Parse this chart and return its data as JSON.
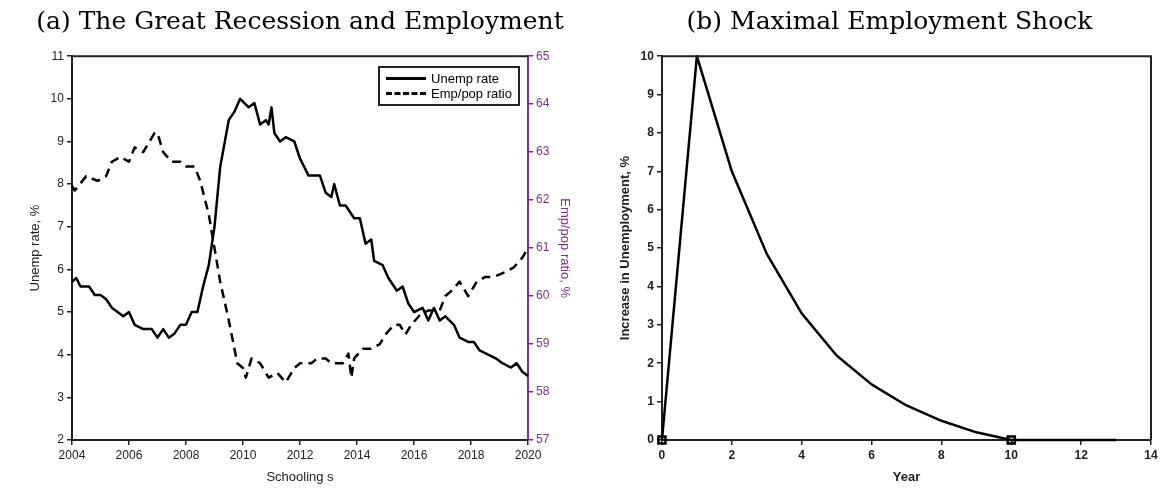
{
  "chart_data": [
    {
      "type": "line",
      "title": "(a) The Great Recession and Employment",
      "xlabel": "Schooling s",
      "ylabel": "Unemp rate, %",
      "y2label": "Emp/pop ratio, %",
      "xlim": [
        2004,
        2020
      ],
      "xticks": [
        2004,
        2006,
        2008,
        2010,
        2012,
        2014,
        2016,
        2018,
        2020
      ],
      "ylim": [
        2,
        11
      ],
      "yticks": [
        2,
        3,
        4,
        5,
        6,
        7,
        8,
        9,
        10,
        11
      ],
      "y2lim": [
        57,
        65
      ],
      "y2ticks": [
        57,
        58,
        59,
        60,
        61,
        62,
        63,
        64,
        65
      ],
      "legend": "top right",
      "grid": false,
      "marker": "none",
      "series": [
        {
          "name": "Unemp rate",
          "color": "#000000",
          "line_style": "solid",
          "x": [
            2004.0,
            2004.15,
            2004.3,
            2004.6,
            2004.8,
            2005.0,
            2005.2,
            2005.4,
            2005.6,
            2005.8,
            2006.0,
            2006.2,
            2006.5,
            2006.8,
            2007.0,
            2007.2,
            2007.4,
            2007.6,
            2007.8,
            2008.0,
            2008.2,
            2008.4,
            2008.6,
            2008.8,
            2009.0,
            2009.2,
            2009.5,
            2009.7,
            2009.9,
            2010.2,
            2010.4,
            2010.6,
            2010.8,
            2010.9,
            2011.0,
            2011.1,
            2011.3,
            2011.5,
            2011.8,
            2012.0,
            2012.3,
            2012.7,
            2012.9,
            2013.1,
            2013.2,
            2013.4,
            2013.6,
            2013.9,
            2014.1,
            2014.3,
            2014.5,
            2014.6,
            2014.9,
            2015.1,
            2015.4,
            2015.6,
            2015.8,
            2016.0,
            2016.3,
            2016.5,
            2016.7,
            2016.9,
            2017.1,
            2017.4,
            2017.6,
            2017.9,
            2018.1,
            2018.3,
            2018.6,
            2018.9,
            2019.1,
            2019.4,
            2019.6,
            2019.8,
            2020.0
          ],
          "values": [
            5.7,
            5.8,
            5.6,
            5.6,
            5.4,
            5.4,
            5.3,
            5.1,
            5.0,
            4.9,
            5.0,
            4.7,
            4.6,
            4.6,
            4.4,
            4.6,
            4.4,
            4.5,
            4.7,
            4.7,
            5.0,
            5.0,
            5.6,
            6.1,
            7.0,
            8.4,
            9.5,
            9.7,
            10.0,
            9.8,
            9.9,
            9.4,
            9.5,
            9.4,
            9.8,
            9.2,
            9.0,
            9.1,
            9.0,
            8.6,
            8.2,
            8.2,
            7.8,
            7.7,
            8.0,
            7.5,
            7.5,
            7.2,
            7.2,
            6.6,
            6.7,
            6.2,
            6.1,
            5.8,
            5.5,
            5.6,
            5.2,
            5.0,
            5.1,
            4.8,
            5.1,
            4.8,
            4.9,
            4.7,
            4.4,
            4.3,
            4.3,
            4.1,
            4.0,
            3.9,
            3.8,
            3.7,
            3.8,
            3.6,
            3.5
          ]
        },
        {
          "name": "Emp/pop ratio",
          "color": "#000000",
          "line_style": "dashed",
          "axis": "y2",
          "x": [
            2004.0,
            2004.1,
            2004.5,
            2004.9,
            2005.2,
            2005.4,
            2005.7,
            2006.0,
            2006.2,
            2006.5,
            2006.9,
            2007.0,
            2007.2,
            2007.5,
            2007.8,
            2008.0,
            2008.3,
            2008.5,
            2008.8,
            2009.0,
            2009.2,
            2009.5,
            2009.8,
            2010.0,
            2010.1,
            2010.3,
            2010.6,
            2010.9,
            2011.2,
            2011.5,
            2011.8,
            2012.0,
            2012.4,
            2012.6,
            2012.9,
            2013.1,
            2013.5,
            2013.7,
            2013.8,
            2013.9,
            2014.2,
            2014.5,
            2014.8,
            2015.0,
            2015.3,
            2015.5,
            2015.7,
            2015.9,
            2016.2,
            2016.5,
            2016.9,
            2017.1,
            2017.3,
            2017.6,
            2017.9,
            2018.2,
            2018.5,
            2018.8,
            2019.2,
            2019.5,
            2019.8,
            2020.0
          ],
          "values": [
            62.3,
            62.2,
            62.5,
            62.4,
            62.5,
            62.8,
            62.9,
            62.8,
            63.1,
            63.0,
            63.4,
            63.4,
            63.0,
            62.8,
            62.8,
            62.7,
            62.7,
            62.4,
            61.7,
            61.0,
            60.3,
            59.5,
            58.6,
            58.5,
            58.3,
            58.7,
            58.6,
            58.3,
            58.4,
            58.2,
            58.5,
            58.6,
            58.6,
            58.7,
            58.7,
            58.6,
            58.6,
            58.8,
            58.3,
            58.7,
            58.9,
            58.9,
            59.0,
            59.2,
            59.4,
            59.4,
            59.2,
            59.4,
            59.6,
            59.7,
            59.7,
            60.0,
            60.1,
            60.3,
            60.0,
            60.3,
            60.4,
            60.4,
            60.5,
            60.6,
            60.8,
            61.0
          ]
        }
      ]
    },
    {
      "type": "line",
      "title": "(b) Maximal Employment Shock",
      "xlabel": "Year",
      "ylabel": "Increase in Unemployment, %",
      "xlim": [
        0,
        14
      ],
      "xticks": [
        0,
        2,
        4,
        6,
        8,
        10,
        12,
        14
      ],
      "ylim": [
        0,
        10
      ],
      "yticks": [
        0,
        1,
        2,
        3,
        4,
        5,
        6,
        7,
        8,
        9,
        10
      ],
      "legend": false,
      "grid": false,
      "series": [
        {
          "color": "#000000",
          "line_style": "solid",
          "marker": "none",
          "x": [
            0,
            1,
            2,
            3,
            4,
            5,
            6,
            7,
            8,
            9,
            10,
            11,
            12,
            13
          ],
          "values": [
            0,
            10,
            7,
            4.85,
            3.3,
            2.2,
            1.45,
            0.9,
            0.5,
            0.2,
            0,
            0,
            0,
            0
          ]
        },
        {
          "type": "scatter",
          "color": "#000000",
          "marker": "square",
          "x": [
            0,
            10
          ],
          "values": [
            0,
            0
          ]
        }
      ]
    }
  ]
}
